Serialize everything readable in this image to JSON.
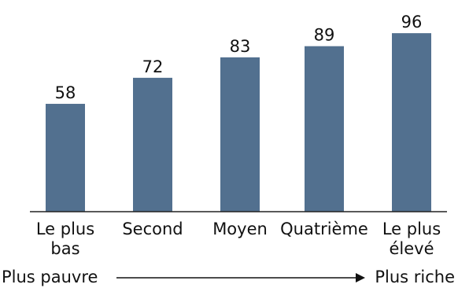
{
  "chart_data": {
    "type": "bar",
    "categories": [
      [
        "Le plus",
        "bas"
      ],
      [
        "Second"
      ],
      [
        "Moyen"
      ],
      [
        "Quatrième"
      ],
      [
        "Le plus",
        "élevé"
      ]
    ],
    "values": [
      58,
      72,
      83,
      89,
      96
    ],
    "ylim": [
      0,
      100
    ],
    "grid": false,
    "bar_color": "#52708f"
  },
  "footer": {
    "left": "Plus pauvre",
    "right": "Plus riche"
  }
}
